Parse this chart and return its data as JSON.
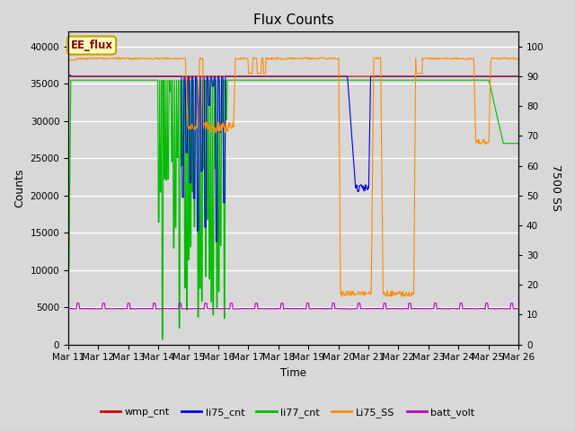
{
  "title": "Flux Counts",
  "xlabel": "Time",
  "ylabel_left": "Counts",
  "ylabel_right": "7500 SS",
  "annotation_text": "EE_flux",
  "annotation_color": "#8B0000",
  "annotation_bg": "#FFFFC0",
  "annotation_border": "#C8A000",
  "x_tick_labels": [
    "Mar 11",
    "Mar 12",
    "Mar 13",
    "Mar 14",
    "Mar 15",
    "Mar 16",
    "Mar 17",
    "Mar 18",
    "Mar 19",
    "Mar 20",
    "Mar 21",
    "Mar 22",
    "Mar 23",
    "Mar 24",
    "Mar 25",
    "Mar 26"
  ],
  "ylim_left": [
    0,
    42000
  ],
  "ylim_right": [
    0,
    105
  ],
  "yticks_left": [
    0,
    5000,
    10000,
    15000,
    20000,
    25000,
    30000,
    35000,
    40000
  ],
  "yticks_right": [
    0,
    10,
    20,
    30,
    40,
    50,
    60,
    70,
    80,
    90,
    100
  ],
  "legend_entries": [
    "wmp_cnt",
    "li75_cnt",
    "li77_cnt",
    "Li75_SS",
    "batt_volt"
  ],
  "legend_colors": [
    "#CC0000",
    "#0000DD",
    "#00BB00",
    "#FF8C00",
    "#BB00BB"
  ],
  "bg_color": "#D8D8D8",
  "plot_bg": "#D8D8D8",
  "grid_color": "#FFFFFF",
  "line_width": 1.0,
  "figsize": [
    6.4,
    4.8
  ],
  "dpi": 100
}
